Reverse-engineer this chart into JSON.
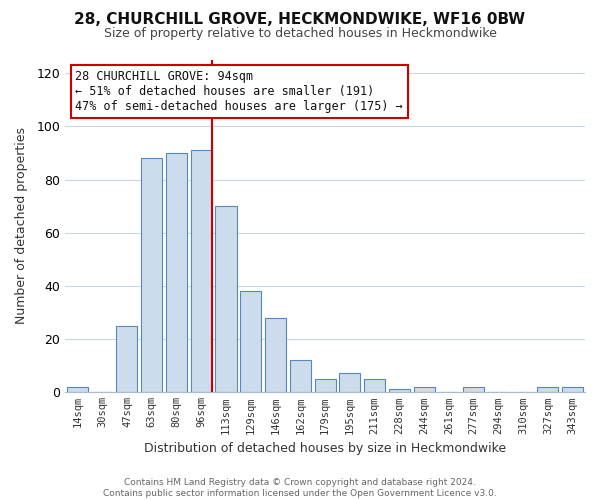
{
  "title": "28, CHURCHILL GROVE, HECKMONDWIKE, WF16 0BW",
  "subtitle": "Size of property relative to detached houses in Heckmondwike",
  "xlabel": "Distribution of detached houses by size in Heckmondwike",
  "ylabel": "Number of detached properties",
  "bar_labels": [
    "14sqm",
    "30sqm",
    "47sqm",
    "63sqm",
    "80sqm",
    "96sqm",
    "113sqm",
    "129sqm",
    "146sqm",
    "162sqm",
    "179sqm",
    "195sqm",
    "211sqm",
    "228sqm",
    "244sqm",
    "261sqm",
    "277sqm",
    "294sqm",
    "310sqm",
    "327sqm",
    "343sqm"
  ],
  "bar_values": [
    2,
    0,
    25,
    88,
    90,
    91,
    70,
    38,
    28,
    12,
    5,
    7,
    5,
    1,
    2,
    0,
    2,
    0,
    0,
    2,
    2
  ],
  "bar_color": "#cddcec",
  "bar_edge_color": "#5588bb",
  "marker_bar_index": 5,
  "marker_line_color": "#cc0000",
  "ylim": [
    0,
    125
  ],
  "yticks": [
    0,
    20,
    40,
    60,
    80,
    100,
    120
  ],
  "annotation_title": "28 CHURCHILL GROVE: 94sqm",
  "annotation_line1": "← 51% of detached houses are smaller (191)",
  "annotation_line2": "47% of semi-detached houses are larger (175) →",
  "annotation_box_color": "#ffffff",
  "annotation_box_edge_color": "#cc0000",
  "footer_line1": "Contains HM Land Registry data © Crown copyright and database right 2024.",
  "footer_line2": "Contains public sector information licensed under the Open Government Licence v3.0.",
  "background_color": "#ffffff",
  "grid_color": "#c8d8e8"
}
